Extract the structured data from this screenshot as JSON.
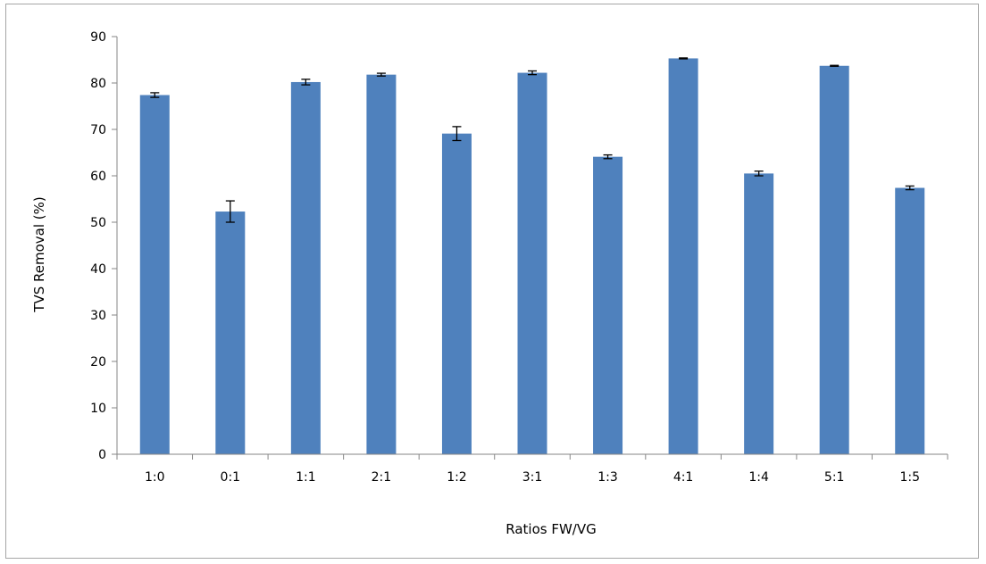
{
  "chart_data": {
    "type": "bar",
    "title": "",
    "xlabel": "Ratios FW/VG",
    "ylabel": "TVS Removal (%)",
    "ylim": [
      0,
      90
    ],
    "yticks": [
      0,
      10,
      20,
      30,
      40,
      50,
      60,
      70,
      80,
      90
    ],
    "grid": false,
    "legend": "none",
    "categories": [
      "1:0",
      "0:1",
      "1:1",
      "2:1",
      "1:2",
      "3:1",
      "1:3",
      "4:1",
      "1:4",
      "5:1",
      "1:5"
    ],
    "series": [
      {
        "values": [
          77.4,
          52.3,
          80.2,
          81.8,
          69.1,
          82.2,
          64.1,
          85.3,
          60.5,
          83.7,
          57.4
        ],
        "errors": [
          0.5,
          2.3,
          0.6,
          0.3,
          1.5,
          0.4,
          0.4,
          0.1,
          0.5,
          0.1,
          0.4
        ],
        "color": "#4f81bd"
      }
    ]
  }
}
